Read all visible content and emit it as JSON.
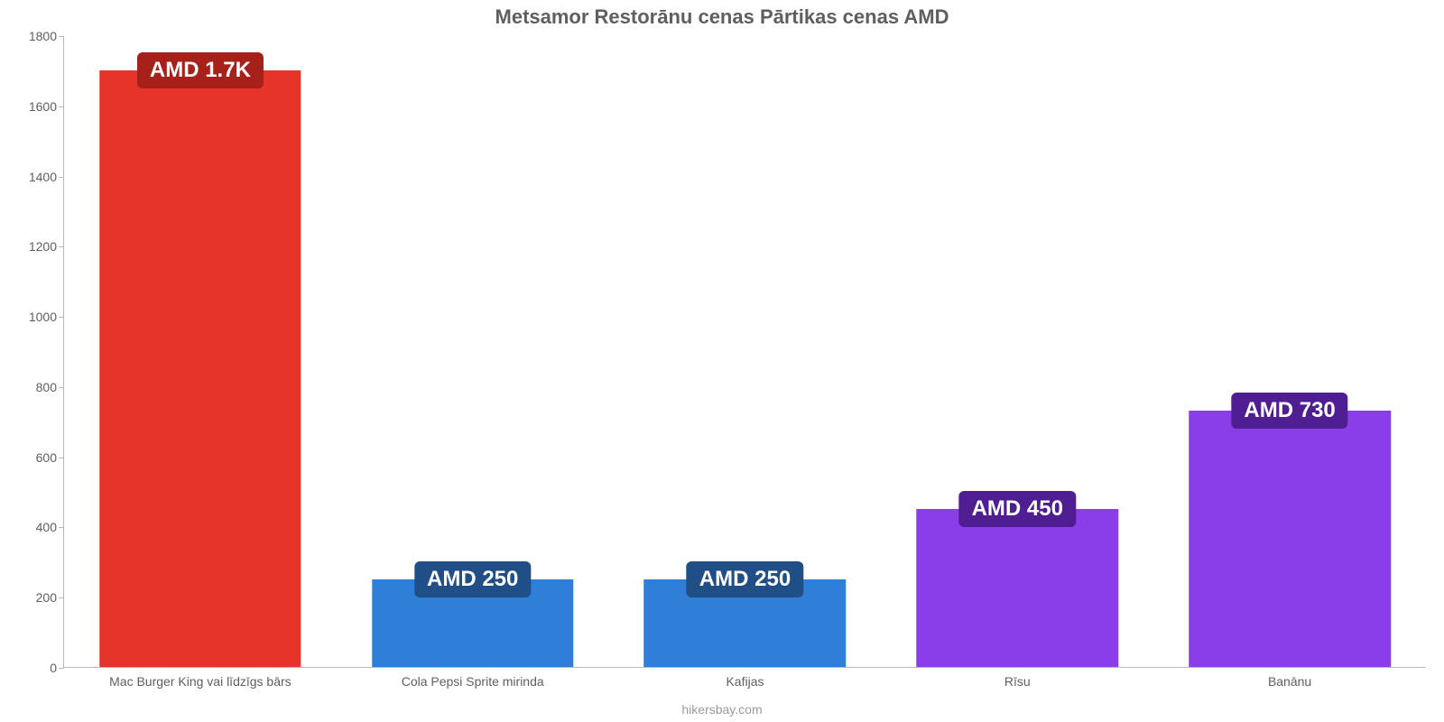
{
  "chart": {
    "type": "bar",
    "title": "Metsamor Restorānu cenas Pārtikas cenas AMD",
    "title_fontsize": 22,
    "title_color": "#5f5f5f",
    "footer": "hikersbay.com",
    "footer_color": "#9a9a9a",
    "background_color": "#ffffff",
    "axis_color": "#b9b9b9",
    "tick_label_color": "#5f5f5f",
    "tick_label_fontsize": 14,
    "categories": [
      "Mac Burger King vai līdzīgs bārs",
      "Cola Pepsi Sprite mirinda",
      "Kafijas",
      "Rīsu",
      "Banānu"
    ],
    "values": [
      1700,
      250,
      250,
      450,
      730
    ],
    "value_labels": [
      "AMD 1.7K",
      "AMD 250",
      "AMD 250",
      "AMD 450",
      "AMD 730"
    ],
    "bar_colors": [
      "#e6342a",
      "#2f7ed8",
      "#2f7ed8",
      "#8a3ee8",
      "#8a3ee8"
    ],
    "badge_colors": [
      "#a6211a",
      "#1f4f86",
      "#1f4f86",
      "#4f1e92",
      "#4f1e92"
    ],
    "badge_text_color": "#ffffff",
    "badge_fontsize": 24,
    "ylim": [
      0,
      1800
    ],
    "ytick_step": 200,
    "bar_width_ratio": 0.74,
    "yticks": [
      "0",
      "200",
      "400",
      "600",
      "800",
      "1000",
      "1200",
      "1400",
      "1600",
      "1800"
    ]
  }
}
